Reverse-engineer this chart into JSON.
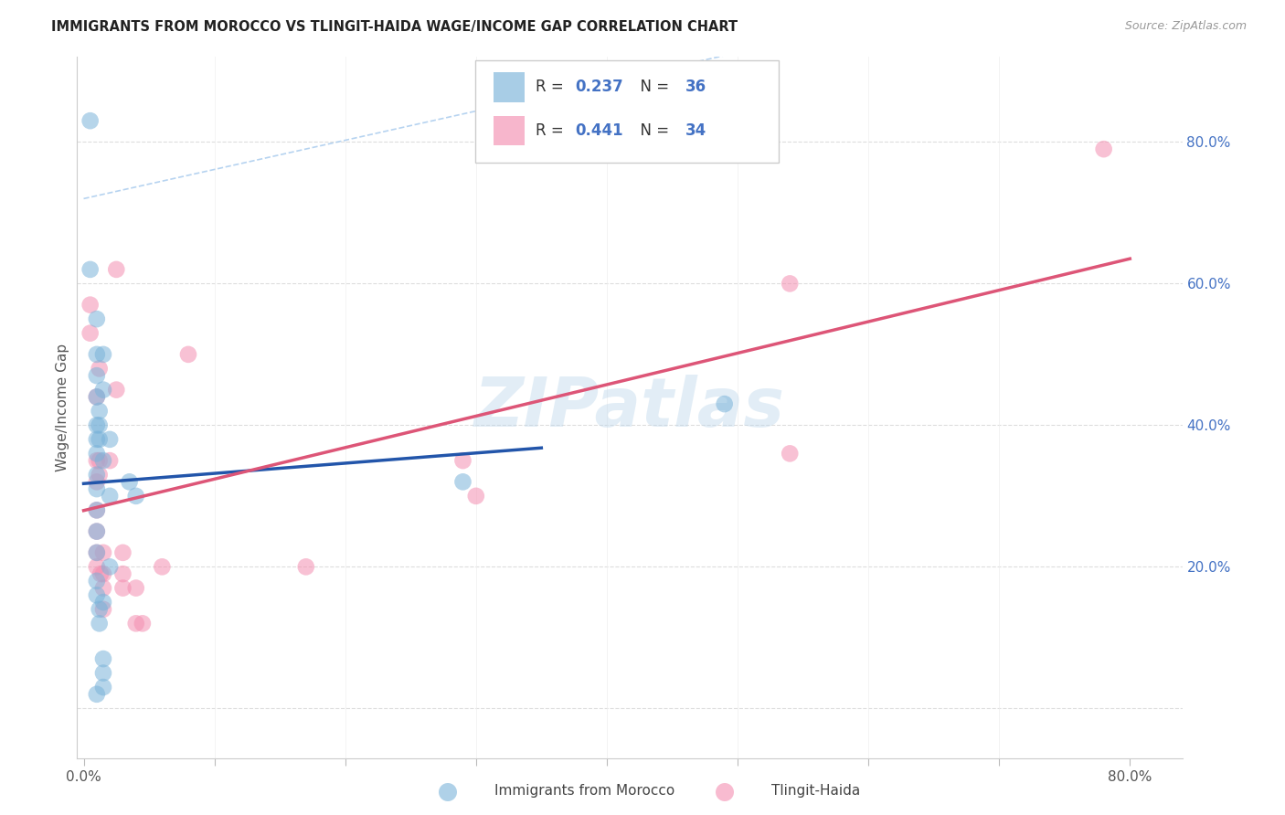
{
  "title": "IMMIGRANTS FROM MOROCCO VS TLINGIT-HAIDA WAGE/INCOME GAP CORRELATION CHART",
  "source": "Source: ZipAtlas.com",
  "ylabel": "Wage/Income Gap",
  "xlim": [
    -0.005,
    0.84
  ],
  "ylim": [
    -0.07,
    0.92
  ],
  "watermark": "ZIPatlas",
  "blue_color": "#7ab3d9",
  "pink_color": "#f48fb1",
  "blue_line_color": "#2255aa",
  "pink_line_color": "#dd5577",
  "dashed_color": "#aaccee",
  "blue_R": "0.237",
  "blue_N": "36",
  "pink_R": "0.441",
  "pink_N": "34",
  "stat_color": "#4472c4",
  "legend_label_blue": "Immigrants from Morocco",
  "legend_label_pink": "Tlingit-Haida",
  "blue_points_x": [
    0.005,
    0.005,
    0.01,
    0.01,
    0.01,
    0.01,
    0.01,
    0.01,
    0.01,
    0.01,
    0.01,
    0.01,
    0.01,
    0.01,
    0.01,
    0.01,
    0.012,
    0.012,
    0.012,
    0.012,
    0.015,
    0.015,
    0.015,
    0.015,
    0.015,
    0.015,
    0.015,
    0.02,
    0.02,
    0.02,
    0.035,
    0.04,
    0.29,
    0.49,
    0.01,
    0.012
  ],
  "blue_points_y": [
    0.83,
    0.62,
    0.5,
    0.47,
    0.44,
    0.4,
    0.38,
    0.36,
    0.33,
    0.31,
    0.28,
    0.25,
    0.22,
    0.18,
    0.16,
    0.02,
    0.4,
    0.38,
    0.14,
    0.12,
    0.5,
    0.45,
    0.35,
    0.15,
    0.07,
    0.05,
    0.03,
    0.38,
    0.3,
    0.2,
    0.32,
    0.3,
    0.32,
    0.43,
    0.55,
    0.42
  ],
  "pink_points_x": [
    0.005,
    0.005,
    0.01,
    0.01,
    0.01,
    0.01,
    0.01,
    0.01,
    0.01,
    0.012,
    0.012,
    0.012,
    0.013,
    0.015,
    0.015,
    0.015,
    0.015,
    0.02,
    0.025,
    0.025,
    0.03,
    0.03,
    0.03,
    0.04,
    0.04,
    0.045,
    0.06,
    0.08,
    0.17,
    0.29,
    0.3,
    0.54,
    0.54,
    0.78
  ],
  "pink_points_y": [
    0.57,
    0.53,
    0.44,
    0.35,
    0.32,
    0.28,
    0.25,
    0.22,
    0.2,
    0.48,
    0.35,
    0.33,
    0.19,
    0.22,
    0.19,
    0.17,
    0.14,
    0.35,
    0.62,
    0.45,
    0.22,
    0.19,
    0.17,
    0.17,
    0.12,
    0.12,
    0.2,
    0.5,
    0.2,
    0.35,
    0.3,
    0.6,
    0.36,
    0.79
  ]
}
